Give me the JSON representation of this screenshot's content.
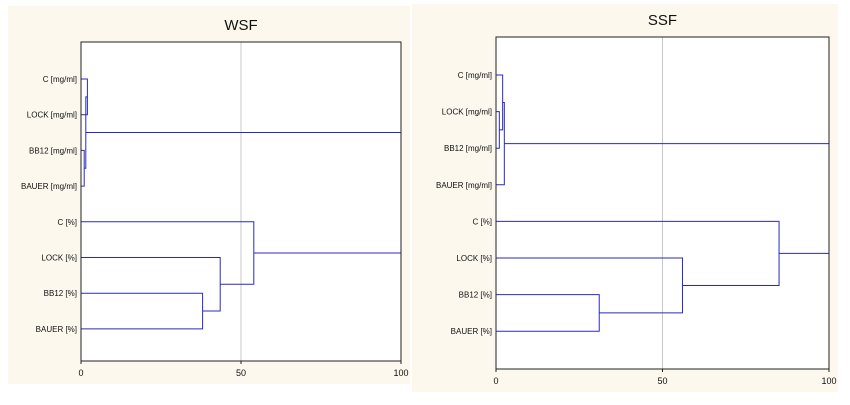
{
  "colors": {
    "panel_background": "#fcf8ee",
    "plot_background": "#ffffff",
    "frame": "#222222",
    "dendrogram_line": "#2a2ac0",
    "gridline": "#c8c8c8"
  },
  "chart_data": [
    {
      "type": "dendrogram",
      "title": "WSF",
      "xlim": [
        0,
        100
      ],
      "xticks": [
        "0",
        "50",
        "100"
      ],
      "grid_x": [
        50
      ],
      "leaves": [
        "C [mg/ml]",
        "LOCK [mg/ml]",
        "BB12 [mg/ml]",
        "BAUER [mg/ml]",
        "C [%]",
        "LOCK [%]",
        "BB12 [%]",
        "BAUER [%]"
      ],
      "merges": [
        {
          "a": 0,
          "b": 1,
          "distance": 2
        },
        {
          "a": 2,
          "b": 3,
          "distance": 1
        },
        {
          "a": 8,
          "b": 9,
          "distance": 1.5
        },
        {
          "a": 6,
          "b": 7,
          "distance": 38
        },
        {
          "a": 5,
          "b": 11,
          "distance": 43.5
        },
        {
          "a": 4,
          "b": 12,
          "distance": 54
        },
        {
          "a": 10,
          "b": 13,
          "distance": 100
        }
      ]
    },
    {
      "type": "dendrogram",
      "title": "SSF",
      "xlim": [
        0,
        100
      ],
      "xticks": [
        "0",
        "50",
        "100"
      ],
      "grid_x": [
        50
      ],
      "leaves": [
        "C [mg/ml]",
        "LOCK [mg/ml]",
        "BB12 [mg/ml]",
        "BAUER [mg/ml]",
        "C [%]",
        "LOCK [%]",
        "BB12 [%]",
        "BAUER [%]"
      ],
      "merges": [
        {
          "a": 1,
          "b": 2,
          "distance": 1
        },
        {
          "a": 0,
          "b": 8,
          "distance": 2
        },
        {
          "a": 9,
          "b": 3,
          "distance": 2.5
        },
        {
          "a": 6,
          "b": 7,
          "distance": 31
        },
        {
          "a": 5,
          "b": 11,
          "distance": 56
        },
        {
          "a": 4,
          "b": 12,
          "distance": 85
        },
        {
          "a": 10,
          "b": 13,
          "distance": 100
        }
      ]
    }
  ]
}
